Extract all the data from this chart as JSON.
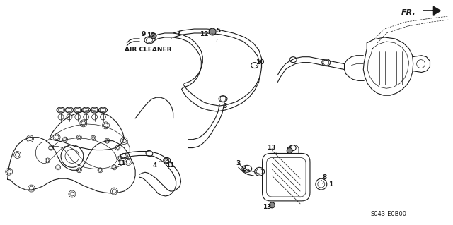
{
  "background_color": "#ffffff",
  "line_color": "#1a1a1a",
  "part_number": "S043-E0B00",
  "figsize": [
    6.4,
    3.19
  ],
  "dpi": 100,
  "label_fontsize": 6.5,
  "small_fontsize": 6.0
}
